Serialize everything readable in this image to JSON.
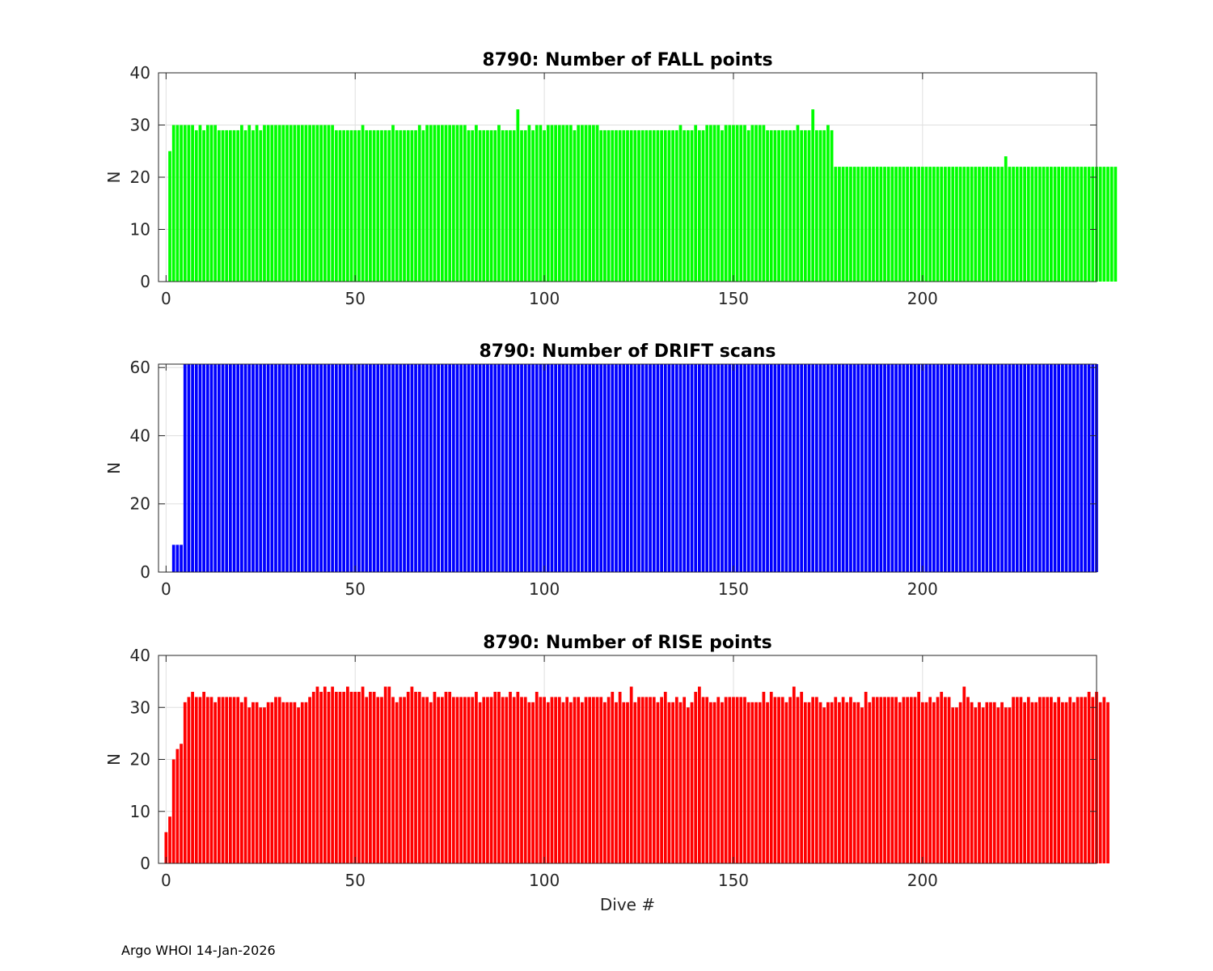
{
  "footer": "Argo WHOI 14-Jan-2026",
  "chart_data": [
    {
      "type": "bar",
      "title": "8790: Number of FALL points",
      "ylabel": "N",
      "xlabel": "",
      "color": "#00ff00",
      "xlim": [
        -2,
        246
      ],
      "ylim": [
        0,
        40
      ],
      "xticks": [
        0,
        50,
        100,
        150,
        200
      ],
      "yticks": [
        0,
        10,
        20,
        30,
        40
      ],
      "grid": true,
      "x_start": 1,
      "values": [
        25,
        30,
        30,
        30,
        30,
        30,
        30,
        29,
        30,
        29,
        30,
        30,
        30,
        29,
        29,
        29,
        29,
        29,
        29,
        30,
        29,
        30,
        29,
        30,
        29,
        30,
        30,
        30,
        30,
        30,
        30,
        30,
        30,
        30,
        30,
        30,
        30,
        30,
        30,
        30,
        30,
        30,
        30,
        30,
        29,
        29,
        29,
        29,
        29,
        29,
        29,
        30,
        29,
        29,
        29,
        29,
        29,
        29,
        29,
        30,
        29,
        29,
        29,
        29,
        29,
        29,
        30,
        29,
        30,
        30,
        30,
        30,
        30,
        30,
        30,
        30,
        30,
        30,
        30,
        29,
        29,
        30,
        29,
        29,
        29,
        29,
        29,
        30,
        29,
        29,
        29,
        29,
        33,
        29,
        29,
        30,
        29,
        30,
        30,
        29,
        30,
        30,
        30,
        30,
        30,
        30,
        30,
        29,
        30,
        30,
        30,
        30,
        30,
        30,
        29,
        29,
        29,
        29,
        29,
        29,
        29,
        29,
        29,
        29,
        29,
        29,
        29,
        29,
        29,
        29,
        29,
        29,
        29,
        29,
        29,
        30,
        29,
        29,
        29,
        30,
        29,
        29,
        30,
        30,
        30,
        30,
        29,
        30,
        30,
        30,
        30,
        30,
        30,
        29,
        30,
        30,
        30,
        30,
        29,
        29,
        29,
        29,
        29,
        29,
        29,
        29,
        30,
        29,
        29,
        29,
        33,
        29,
        29,
        29,
        30,
        29,
        22,
        22,
        22,
        22,
        22,
        22,
        22,
        22,
        22,
        22,
        22,
        22,
        22,
        22,
        22,
        22,
        22,
        22,
        22,
        22,
        22,
        22,
        22,
        22,
        22,
        22,
        22,
        22,
        22,
        22,
        22,
        22,
        22,
        22,
        22,
        22,
        22,
        22,
        22,
        22,
        22,
        22,
        22,
        22,
        22,
        24,
        22,
        22,
        22,
        22,
        22,
        22,
        22,
        22,
        22,
        22,
        22,
        22,
        22,
        22,
        22,
        22,
        22,
        22,
        22,
        22,
        22,
        22,
        22,
        22,
        22,
        22,
        22,
        22,
        22
      ]
    },
    {
      "type": "bar",
      "title": "8790: Number of DRIFT scans",
      "ylabel": "N",
      "xlabel": "",
      "color": "#0000ff",
      "xlim": [
        -2,
        246
      ],
      "ylim": [
        0,
        61
      ],
      "xticks": [
        0,
        50,
        100,
        150,
        200
      ],
      "yticks": [
        0,
        20,
        40,
        60
      ],
      "grid": true,
      "x_start": 1,
      "values": [
        0,
        8,
        8,
        8,
        61,
        61,
        61,
        61,
        61,
        61,
        61,
        61,
        61,
        61,
        61,
        61,
        61,
        61,
        61,
        61,
        61,
        61,
        61,
        61,
        61,
        61,
        61,
        61,
        61,
        61,
        61,
        61,
        61,
        61,
        61,
        61,
        61,
        61,
        61,
        61,
        61,
        61,
        61,
        61,
        61,
        61,
        61,
        61,
        61,
        61,
        61,
        61,
        61,
        61,
        61,
        61,
        61,
        61,
        61,
        61,
        61,
        61,
        61,
        61,
        61,
        61,
        61,
        61,
        61,
        61,
        61,
        61,
        61,
        61,
        61,
        61,
        61,
        61,
        61,
        61,
        61,
        61,
        61,
        61,
        61,
        61,
        61,
        61,
        61,
        61,
        61,
        61,
        61,
        61,
        61,
        61,
        61,
        61,
        61,
        61,
        61,
        61,
        61,
        61,
        61,
        61,
        61,
        61,
        61,
        61,
        61,
        61,
        61,
        61,
        61,
        61,
        61,
        61,
        61,
        61,
        61,
        61,
        61,
        61,
        61,
        61,
        61,
        61,
        61,
        61,
        61,
        61,
        61,
        61,
        61,
        61,
        61,
        61,
        61,
        61,
        61,
        61,
        61,
        61,
        61,
        61,
        61,
        61,
        61,
        61,
        61,
        61,
        61,
        61,
        61,
        61,
        61,
        61,
        61,
        61,
        61,
        61,
        61,
        61,
        61,
        61,
        61,
        61,
        61,
        61,
        61,
        61,
        61,
        61,
        61,
        61,
        61,
        61,
        61,
        61,
        61,
        61,
        61,
        61,
        61,
        61,
        61,
        61,
        61,
        61,
        61,
        61,
        61,
        61,
        61,
        61,
        61,
        61,
        61,
        61,
        61,
        61,
        61,
        61,
        61,
        61,
        61,
        61,
        61,
        61,
        61,
        61,
        61,
        61,
        61,
        61,
        61,
        61,
        61,
        61,
        61,
        61,
        61,
        61,
        61,
        61,
        61,
        61,
        61,
        61,
        61,
        61,
        61,
        61,
        61,
        61,
        61,
        61,
        61,
        61,
        61,
        61,
        61,
        61,
        61,
        61
      ]
    },
    {
      "type": "bar",
      "title": "8790: Number of RISE points",
      "ylabel": "N",
      "xlabel": "Dive #",
      "color": "#ff0000",
      "xlim": [
        -2,
        246
      ],
      "ylim": [
        0,
        40
      ],
      "xticks": [
        0,
        50,
        100,
        150,
        200
      ],
      "yticks": [
        0,
        10,
        20,
        30,
        40
      ],
      "grid": true,
      "x_start": 0,
      "values": [
        6,
        9,
        20,
        22,
        23,
        31,
        32,
        33,
        32,
        32,
        33,
        32,
        32,
        31,
        32,
        32,
        32,
        32,
        32,
        32,
        31,
        32,
        30,
        31,
        31,
        30,
        30,
        31,
        31,
        32,
        32,
        31,
        31,
        31,
        31,
        30,
        31,
        31,
        32,
        33,
        34,
        33,
        34,
        33,
        34,
        33,
        33,
        33,
        34,
        33,
        33,
        33,
        34,
        32,
        33,
        33,
        32,
        32,
        34,
        34,
        32,
        31,
        32,
        32,
        33,
        34,
        33,
        33,
        32,
        32,
        31,
        33,
        32,
        32,
        33,
        33,
        32,
        32,
        32,
        32,
        32,
        32,
        33,
        31,
        32,
        32,
        32,
        33,
        33,
        32,
        32,
        33,
        32,
        33,
        32,
        32,
        31,
        31,
        33,
        32,
        32,
        31,
        32,
        32,
        32,
        31,
        32,
        31,
        32,
        32,
        31,
        32,
        32,
        32,
        32,
        32,
        31,
        32,
        33,
        31,
        33,
        31,
        31,
        34,
        31,
        32,
        32,
        32,
        32,
        32,
        31,
        32,
        33,
        31,
        31,
        32,
        31,
        32,
        30,
        31,
        33,
        34,
        32,
        32,
        31,
        31,
        32,
        31,
        32,
        32,
        32,
        32,
        32,
        32,
        31,
        31,
        31,
        31,
        33,
        31,
        33,
        32,
        32,
        32,
        31,
        32,
        34,
        32,
        33,
        31,
        31,
        32,
        32,
        31,
        30,
        31,
        31,
        32,
        31,
        32,
        31,
        32,
        31,
        31,
        30,
        33,
        31,
        32,
        32,
        32,
        32,
        32,
        32,
        32,
        31,
        32,
        32,
        32,
        32,
        33,
        31,
        31,
        32,
        31,
        32,
        33,
        32,
        32,
        30,
        30,
        31,
        34,
        32,
        31,
        30,
        31,
        30,
        31,
        31,
        31,
        30,
        31,
        30,
        30,
        32,
        32,
        32,
        31,
        32,
        31,
        31,
        32,
        32,
        32,
        32,
        31,
        32,
        31,
        31,
        32,
        31,
        32,
        32,
        32,
        33,
        32,
        33,
        31,
        32,
        31
      ]
    }
  ]
}
